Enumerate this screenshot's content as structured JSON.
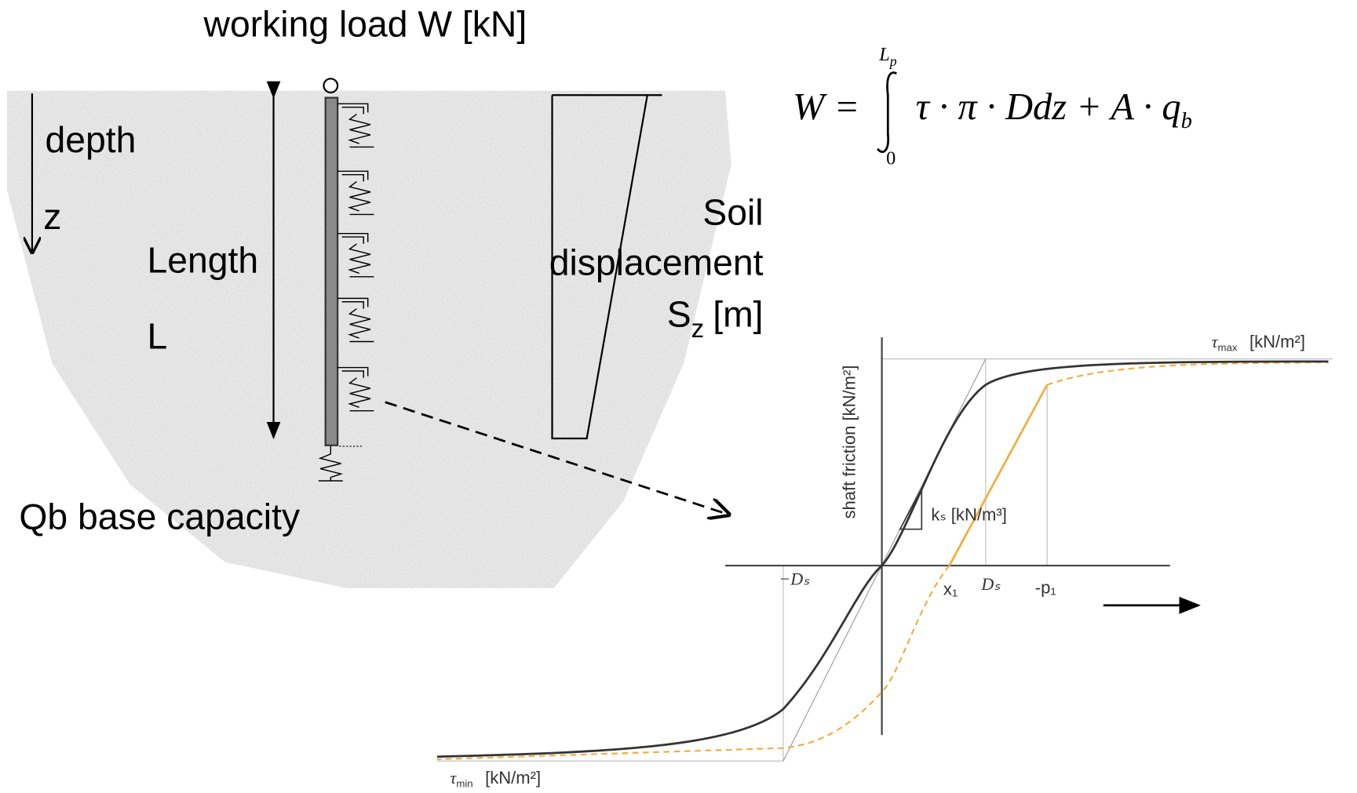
{
  "title": "working load W [kN]",
  "pile": {
    "depth": "depth",
    "z": "z",
    "length": "Length",
    "l": "L",
    "base": "Qb base capacity"
  },
  "soil": {
    "line1": "Soil",
    "line2": "displacement",
    "s": "S",
    "s_sub": "z",
    "unit": "[m]"
  },
  "formula": {
    "lhs": "W =",
    "upper": "L",
    "upper_sub": "p",
    "lower": "0",
    "body": "τ · π · Ddz + A · q",
    "body_sub": "b"
  },
  "graph": {
    "y_label": "shaft friction [kN/m²]",
    "tau_max": "τ",
    "tau_max_sub": "max",
    "tau_max_unit": "[kN/m²]",
    "tau_min": "τ",
    "tau_min_sub": "min",
    "tau_min_unit": "[kN/m²]",
    "ks": "kₛ [kN/m³]",
    "neg_ds": "−Dₛ",
    "ds": "Dₛ",
    "x1": "x₁",
    "p1": "-p₁"
  }
}
